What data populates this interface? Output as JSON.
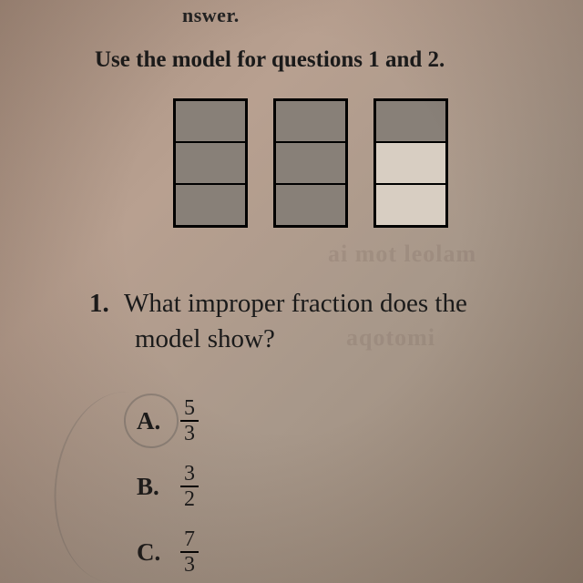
{
  "header": {
    "partial_top": "nswer.",
    "instruction": "Use the model for questions 1 and 2."
  },
  "model": {
    "rects": [
      {
        "cells": [
          "shaded",
          "shaded",
          "shaded"
        ]
      },
      {
        "cells": [
          "shaded",
          "shaded",
          "shaded"
        ]
      },
      {
        "cells": [
          "shaded",
          "unshaded",
          "unshaded"
        ]
      }
    ],
    "border_color": "#000000",
    "shaded_color": "#888078",
    "unshaded_color": "#d8cec2",
    "rect_width": 76,
    "rect_height": 136,
    "gap": 28
  },
  "question": {
    "number": "1.",
    "line1": "What improper fraction does the",
    "line2": "model show?"
  },
  "choices": [
    {
      "letter": "A.",
      "numerator": "5",
      "denominator": "3",
      "circled": true
    },
    {
      "letter": "B.",
      "numerator": "3",
      "denominator": "2",
      "circled": false
    },
    {
      "letter": "C.",
      "numerator": "7",
      "denominator": "3",
      "circled": false
    }
  ],
  "style": {
    "font_family": "Georgia, Times New Roman, serif",
    "text_color": "#1a1a1a",
    "question_fontsize": 29,
    "instruction_fontsize": 25,
    "choice_fontsize": 27,
    "fraction_fontsize": 24,
    "background_gradient": [
      "#a89080",
      "#b8a090",
      "#a8988a",
      "#988878"
    ]
  },
  "artifacts": {
    "faint1": "ai mot leolam",
    "faint2": "aqotomi"
  }
}
